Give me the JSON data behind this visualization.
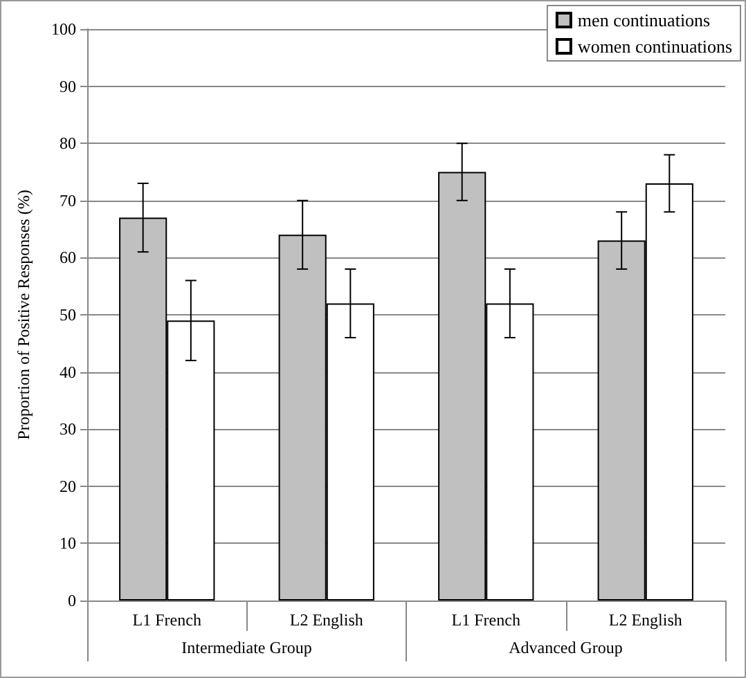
{
  "chart_data": {
    "type": "bar",
    "ylabel": "Proportion of Positive Responses (%)",
    "categories": [
      "L1 French",
      "L2 English",
      "L1 French",
      "L2 English"
    ],
    "series": [
      {
        "name": "men continuations",
        "color": "#c0c0c0",
        "values": [
          67,
          64,
          75,
          63
        ],
        "errors": [
          6,
          6,
          5,
          5
        ]
      },
      {
        "name": "women continuations",
        "color": "#ffffff",
        "values": [
          49,
          52,
          52,
          73
        ],
        "errors": [
          7,
          6,
          6,
          5
        ]
      }
    ],
    "annotations": [
      "Intermediate Group",
      "Advanced Group"
    ],
    "ylim": [
      0,
      100
    ],
    "yticks": [
      0,
      10,
      20,
      30,
      40,
      50,
      60,
      70,
      80,
      90,
      100
    ],
    "grid": "y",
    "legend": "top right"
  }
}
